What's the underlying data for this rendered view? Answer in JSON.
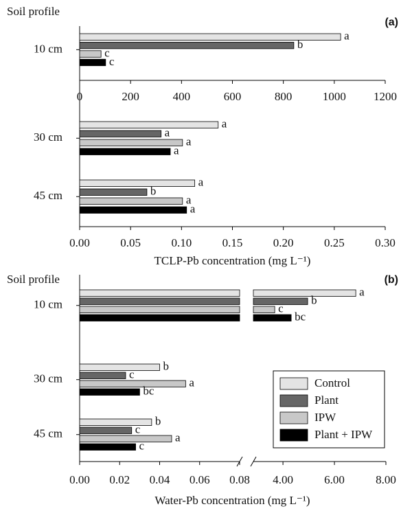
{
  "chart_data": [
    {
      "type": "bar",
      "orientation": "horizontal",
      "tag": "(a)",
      "group_title": "Soil profile",
      "xlabel": "TCLP-Pb concentration (mg L⁻¹)",
      "groups": [
        "10 cm",
        "30 cm",
        "45 cm"
      ],
      "top_axis": {
        "xlim": [
          0,
          1200
        ],
        "xticks": [
          0,
          200,
          400,
          600,
          800,
          1000,
          1200
        ]
      },
      "xlim": [
        0,
        0.3
      ],
      "xticks": [
        {
          "value": 0,
          "label": "0.00"
        },
        {
          "value": 0.05,
          "label": "0.05"
        },
        {
          "value": 0.1,
          "label": "0.10"
        },
        {
          "value": 0.15,
          "label": "0.15"
        },
        {
          "value": 0.2,
          "label": "0.20"
        },
        {
          "value": 0.25,
          "label": "0.25"
        },
        {
          "value": 0.3,
          "label": "0.30"
        }
      ],
      "series": [
        {
          "color": "#e4e4e4",
          "values": [
            1025,
            0.136,
            0.113
          ],
          "letters": [
            "a",
            "a",
            "a"
          ]
        },
        {
          "color": "#666666",
          "values": [
            841,
            0.08,
            0.066
          ],
          "letters": [
            "b",
            "a",
            "b"
          ]
        },
        {
          "color": "#c8c8c8",
          "values": [
            84,
            0.101,
            0.101
          ],
          "letters": [
            "c",
            "a",
            "a"
          ]
        },
        {
          "color": "#000000",
          "values": [
            102,
            0.089,
            0.105
          ],
          "letters": [
            "c",
            "a",
            "a"
          ]
        }
      ]
    },
    {
      "type": "bar",
      "orientation": "horizontal",
      "tag": "(b)",
      "group_title": "Soil profile",
      "xlabel": "Water-Pb concentration (mg L⁻¹)",
      "groups": [
        "10 cm",
        "30 cm",
        "45 cm"
      ],
      "xlim": [
        0,
        0.08
      ],
      "xticks": [
        {
          "value": 0,
          "label": "0.00"
        },
        {
          "value": 0.02,
          "label": "0.02"
        },
        {
          "value": 0.04,
          "label": "0.04"
        },
        {
          "value": 0.06,
          "label": "0.06"
        },
        {
          "value": 0.08,
          "label": "0.08"
        }
      ],
      "x2lim": [
        2.85,
        8
      ],
      "x2ticks": [
        {
          "value": 4,
          "label": "4.00"
        },
        {
          "value": 6,
          "label": "6.00"
        },
        {
          "value": 8,
          "label": "8.00"
        }
      ],
      "legend": "lower right",
      "series": [
        {
          "name": "Control",
          "color": "#e4e4e4",
          "values": [
            6.83,
            0.04,
            0.036
          ],
          "letters": [
            "a",
            "b",
            "b"
          ]
        },
        {
          "name": "Plant",
          "color": "#666666",
          "values": [
            4.96,
            0.023,
            0.026
          ],
          "letters": [
            "b",
            "c",
            "c"
          ]
        },
        {
          "name": "IPW",
          "color": "#c8c8c8",
          "values": [
            3.68,
            0.053,
            0.046
          ],
          "letters": [
            "c",
            "a",
            "a"
          ]
        },
        {
          "name": "Plant + IPW",
          "color": "#000000",
          "values": [
            4.32,
            0.03,
            0.028
          ],
          "letters": [
            "bc",
            "bc",
            "c"
          ]
        }
      ]
    }
  ]
}
